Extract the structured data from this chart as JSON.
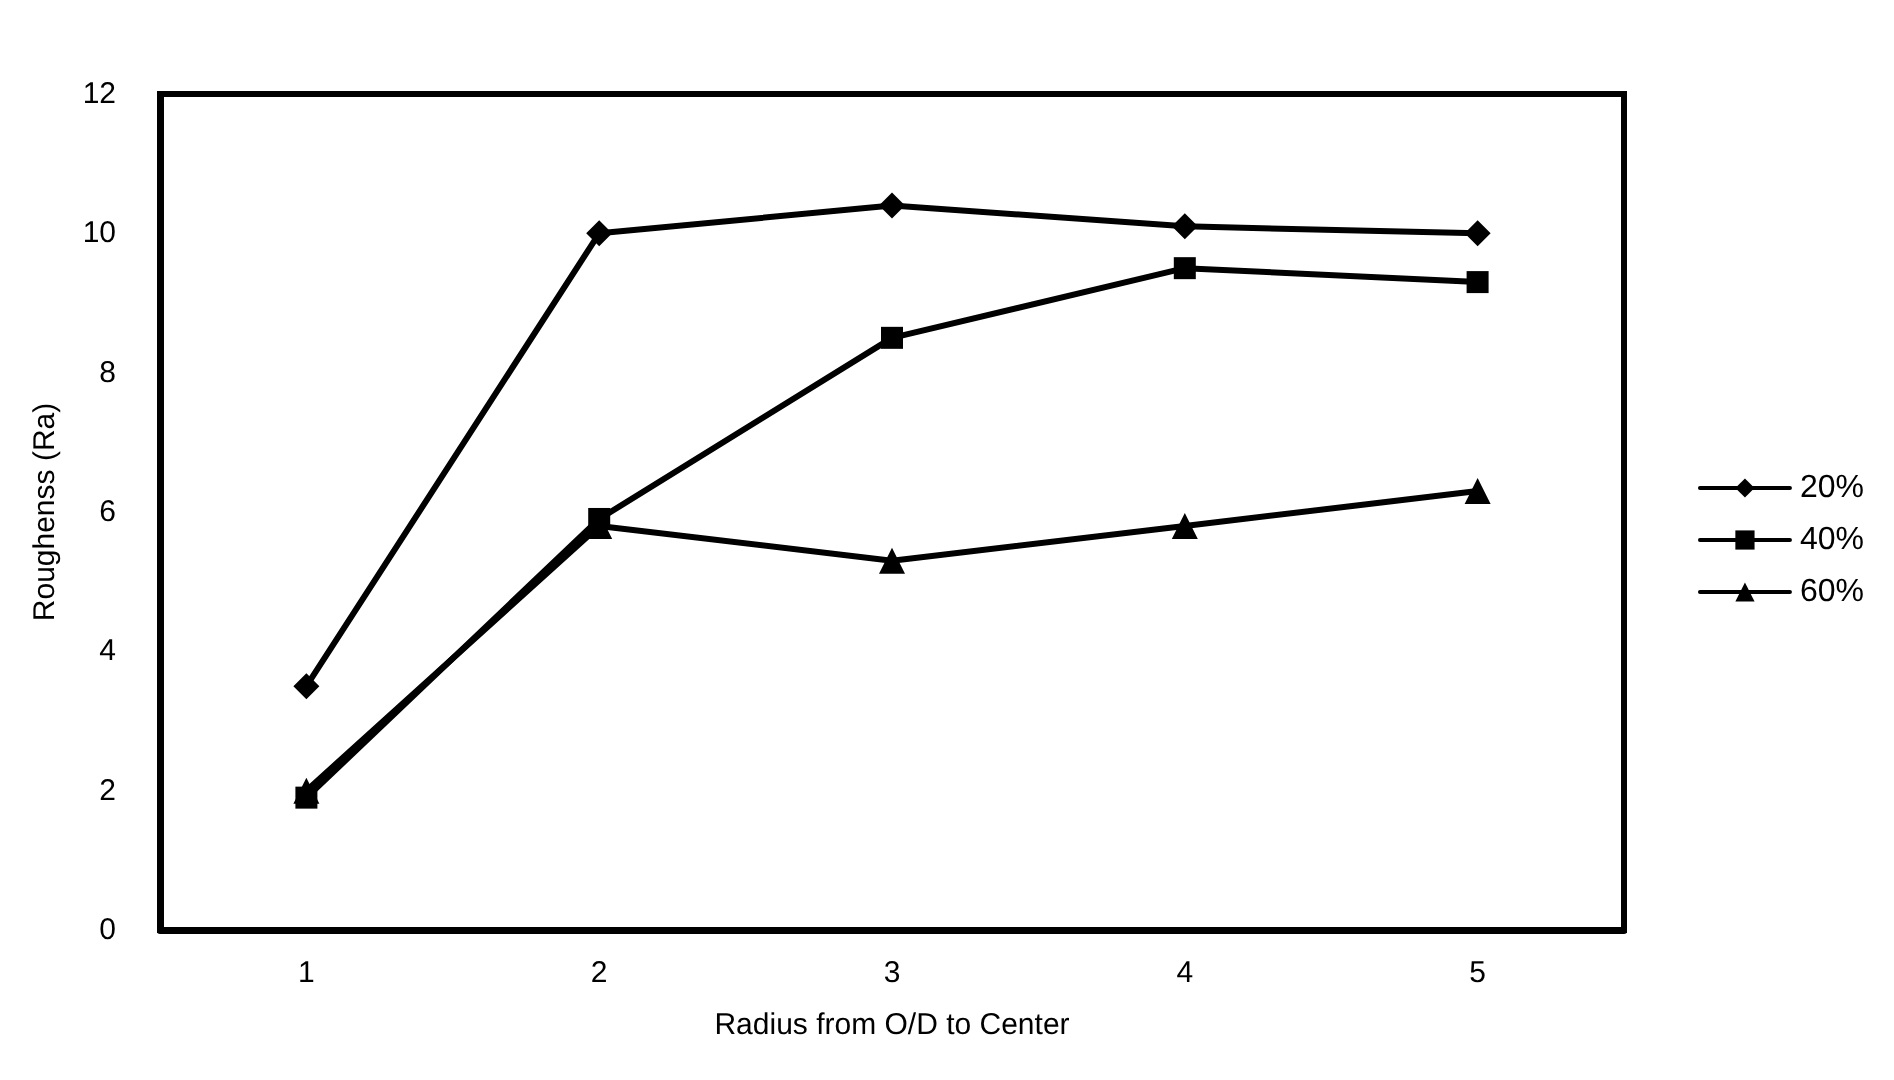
{
  "chart_data": {
    "type": "line",
    "xlabel": "Radius from O/D to Center",
    "ylabel": "Roughenss (Ra)",
    "categories": [
      "1",
      "2",
      "3",
      "4",
      "5"
    ],
    "series": [
      {
        "name": "20%",
        "color": "#000000",
        "marker": "diamond",
        "values": [
          3.5,
          10,
          10.4,
          10.1,
          10
        ]
      },
      {
        "name": "40%",
        "color": "#000000",
        "marker": "square",
        "values": [
          1.9,
          5.9,
          8.5,
          9.5,
          9.3
        ]
      },
      {
        "name": "60%",
        "color": "#000000",
        "marker": "triangle",
        "values": [
          2,
          5.8,
          5.3,
          5.8,
          6.3
        ]
      }
    ],
    "ylim": [
      0,
      12
    ],
    "yticks": [
      0,
      2,
      4,
      6,
      8,
      10,
      12
    ],
    "grid": false,
    "legend": "right",
    "line_style": "solid"
  }
}
